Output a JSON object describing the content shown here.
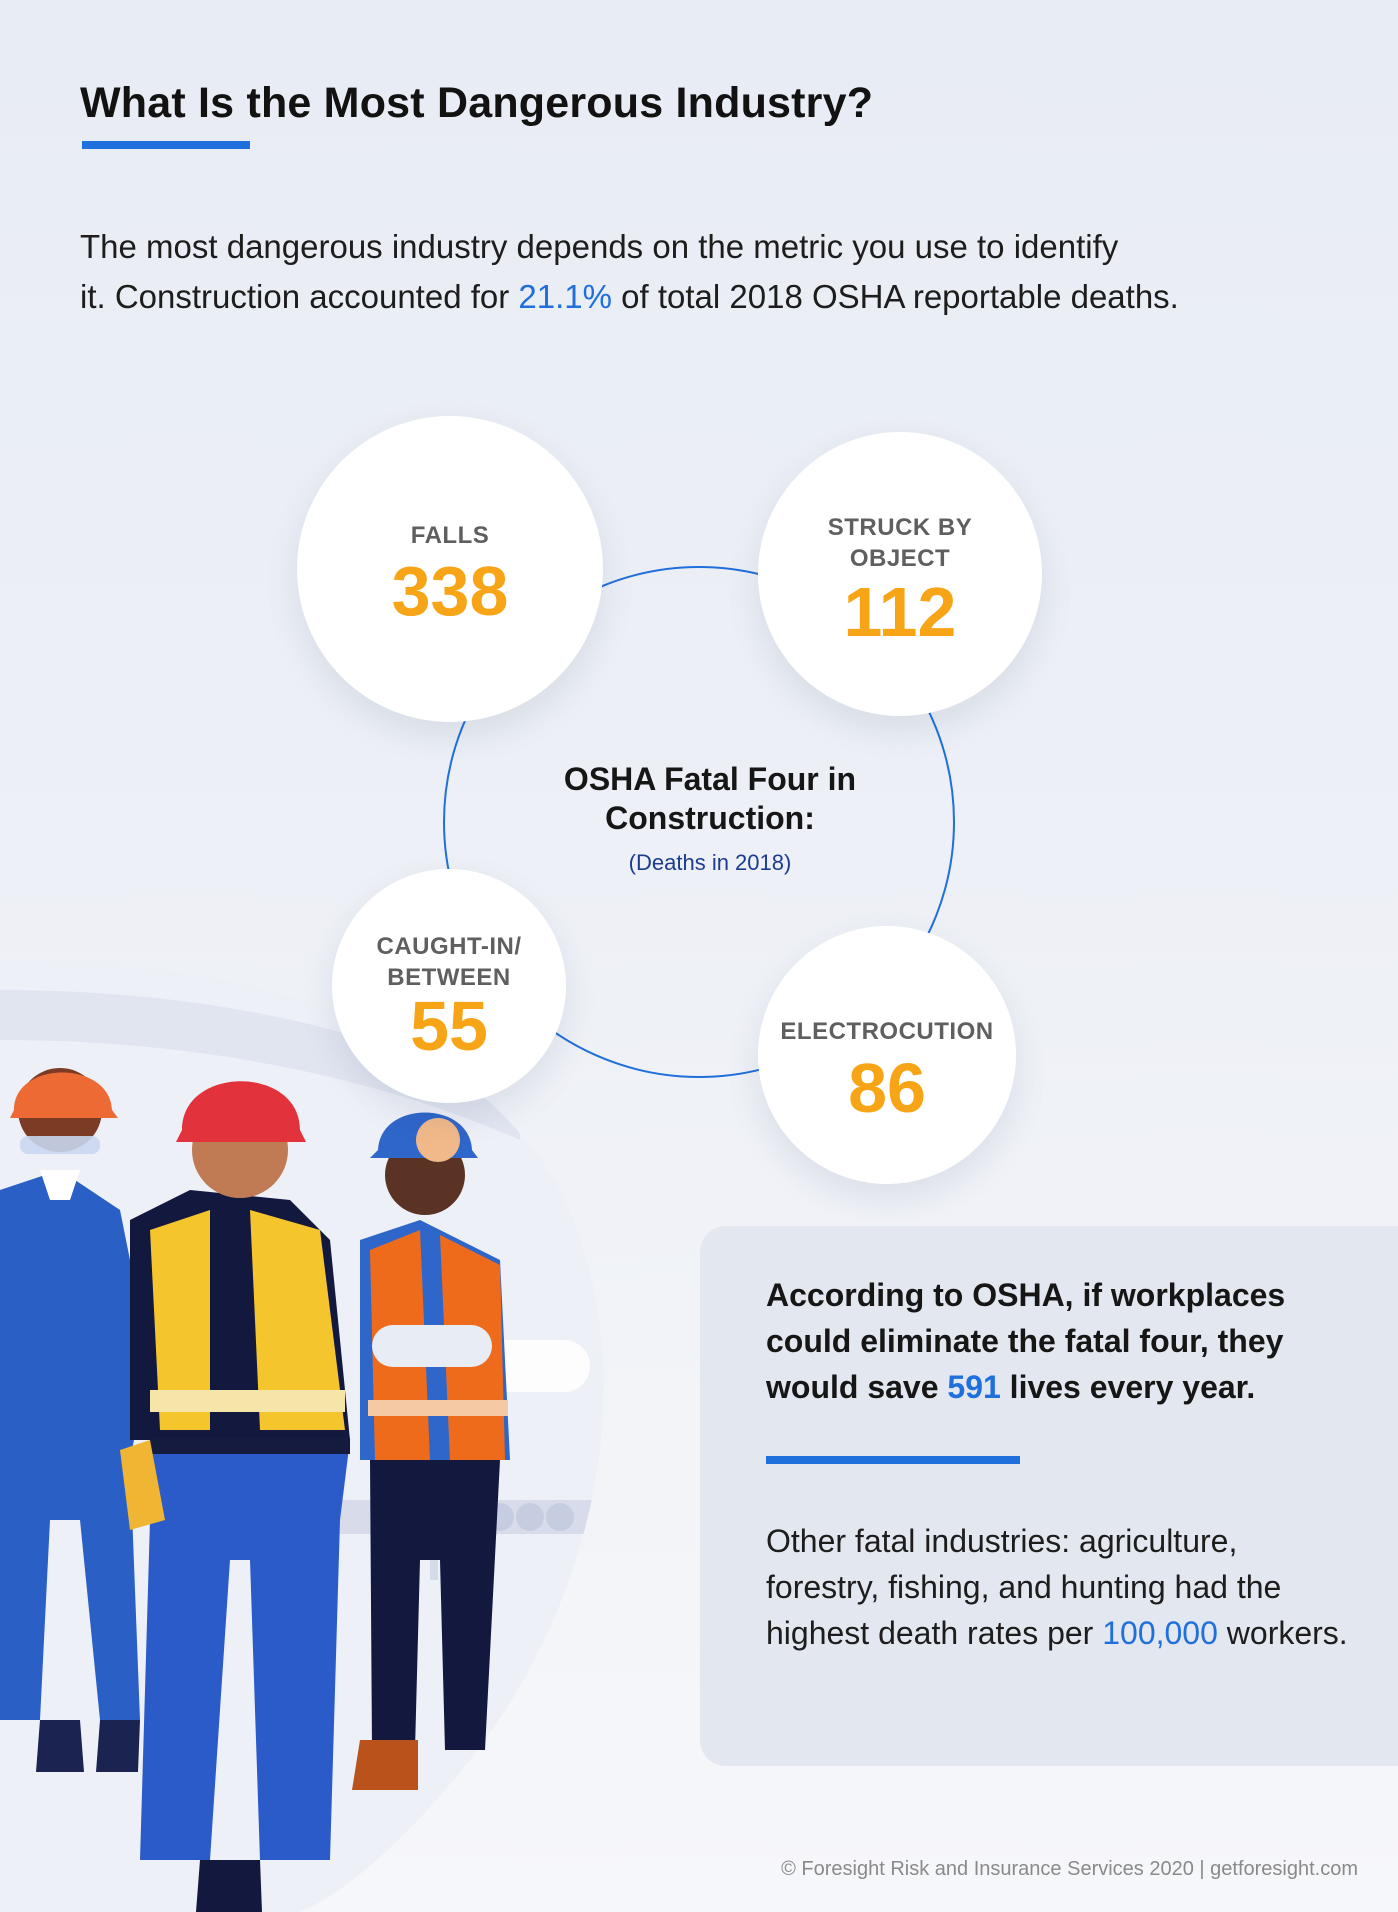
{
  "header": {
    "title": "What Is the Most Dangerous Industry?"
  },
  "intro": {
    "line1": "The most dangerous industry depends on the metric you use to identify",
    "line2_before": "it. Construction accounted for ",
    "highlight": "21.1%",
    "line2_after": " of total 2018 OSHA reportable deaths."
  },
  "fatal_four": {
    "title_line1": "OSHA Fatal Four in",
    "title_line2": "Construction:",
    "subtitle": "(Deaths in 2018)",
    "items": [
      {
        "label_line1": "FALLS",
        "label_line2": "",
        "value": "338"
      },
      {
        "label_line1": "STRUCK BY",
        "label_line2": "OBJECT",
        "value": "112"
      },
      {
        "label_line1": "CAUGHT-IN/",
        "label_line2": "BETWEEN",
        "value": "55"
      },
      {
        "label_line1": "ELECTROCUTION",
        "label_line2": "",
        "value": "86"
      }
    ]
  },
  "info_card": {
    "lead_before": "According to OSHA, if workplaces could eliminate the fatal four, they would save ",
    "lead_highlight": "591",
    "lead_after": " lives every year.",
    "body_before": "Other fatal industries: agriculture, forestry, fishing, and hunting had the highest death rates per ",
    "body_highlight": "100,000",
    "body_after": " workers."
  },
  "footer": {
    "text": "© Foresight Risk and Insurance Services 2020 | getforesight.com"
  },
  "colors": {
    "accent_blue": "#1f6fdc",
    "stat_orange": "#f7a516"
  },
  "icons": [
    "construction-workers-illustration"
  ]
}
